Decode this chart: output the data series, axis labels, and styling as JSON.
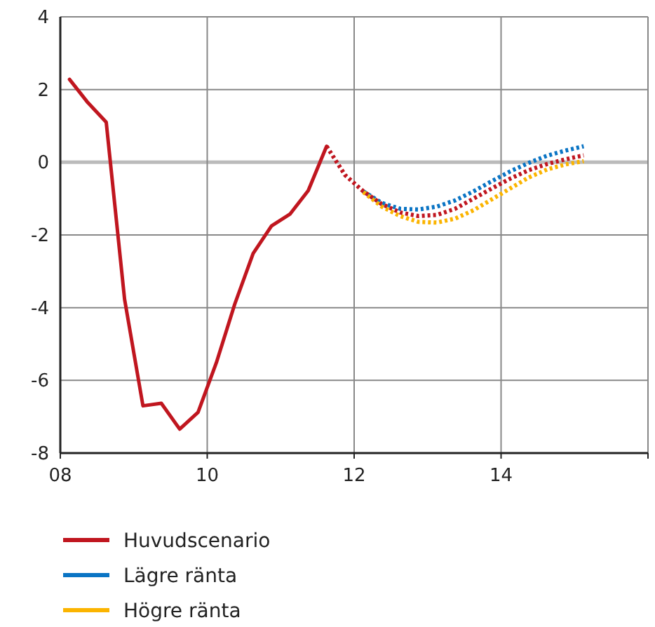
{
  "chart_data": {
    "type": "line",
    "xlim": [
      8,
      16
    ],
    "xticks": [
      {
        "value": 8,
        "label": "08"
      },
      10,
      12,
      14,
      {
        "value": 16,
        "label": null
      }
    ],
    "ylim": [
      -8,
      4
    ],
    "yticks": [
      -8,
      -6,
      -4,
      -2,
      0,
      2,
      4
    ],
    "grid": true,
    "legend": "bottom",
    "series": [
      {
        "name": "Huvudscenario",
        "color": "#c0161f",
        "line_style": "solid",
        "x": [
          8.125,
          8.375,
          8.625,
          8.875,
          9.125,
          9.375,
          9.625,
          9.875,
          10.125,
          10.375,
          10.625,
          10.875,
          11.125,
          11.375,
          11.625
        ],
        "values": [
          2.28,
          1.64,
          1.1,
          -3.77,
          -6.7,
          -6.63,
          -7.34,
          -6.88,
          -5.51,
          -3.9,
          -2.51,
          -1.75,
          -1.43,
          -0.78,
          0.44
        ]
      },
      {
        "name": "Lägre ränta",
        "color": "#0a74c4",
        "line_style": "dotted",
        "x": [
          12.125,
          12.375,
          12.625,
          12.875,
          13.125,
          13.375,
          13.625,
          13.875,
          14.125,
          14.375,
          14.625,
          14.875,
          15.125
        ],
        "values": [
          -0.8,
          -1.12,
          -1.28,
          -1.3,
          -1.22,
          -1.05,
          -0.8,
          -0.52,
          -0.25,
          -0.02,
          0.18,
          0.32,
          0.44
        ]
      },
      {
        "name": "Högre ränta",
        "color": "#fbb400",
        "line_style": "dotted",
        "x": [
          12.125,
          12.375,
          12.625,
          12.875,
          13.125,
          13.375,
          13.625,
          13.875,
          14.125,
          14.375,
          14.625,
          14.875,
          15.125
        ],
        "values": [
          -0.82,
          -1.22,
          -1.48,
          -1.64,
          -1.66,
          -1.55,
          -1.32,
          -1.02,
          -0.72,
          -0.42,
          -0.2,
          -0.06,
          0.03
        ]
      },
      {
        "color": "#c0161f",
        "line_style": "dotted",
        "x": [
          11.625,
          11.875,
          12.125,
          12.375,
          12.625,
          12.875,
          13.125,
          13.375,
          13.625,
          13.875,
          14.125,
          14.375,
          14.625,
          14.875,
          15.125
        ],
        "values": [
          0.44,
          -0.35,
          -0.8,
          -1.15,
          -1.38,
          -1.48,
          -1.45,
          -1.28,
          -1,
          -0.72,
          -0.45,
          -0.22,
          -0.05,
          0.08,
          0.19
        ]
      }
    ]
  }
}
